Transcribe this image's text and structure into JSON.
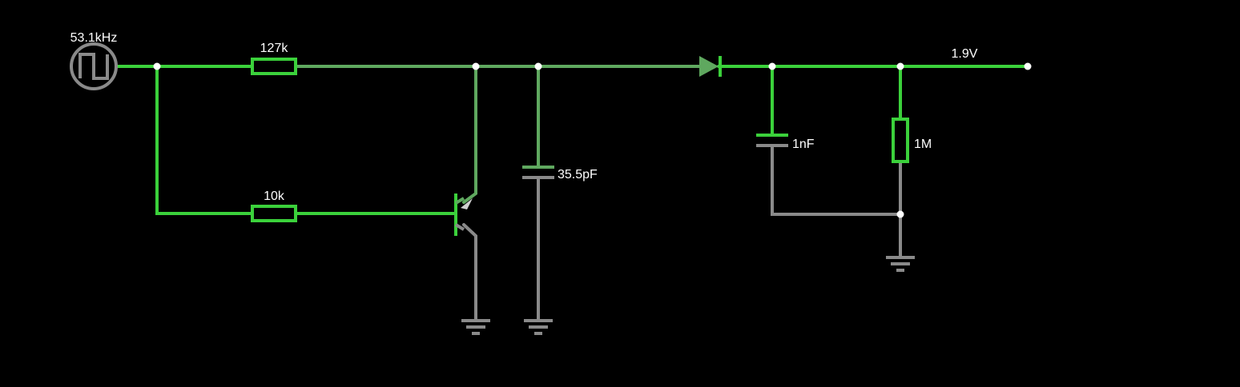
{
  "colors": {
    "background": "#000000",
    "wire_high": "#3bd13b",
    "wire_mid": "#5fa85f",
    "wire_ground": "#8a8a8a",
    "node": "#ffffff",
    "label": "#ffffff"
  },
  "components": {
    "source": {
      "icon": "square-wave-source-icon",
      "label": "53.1kHz"
    },
    "r1": {
      "icon": "resistor-icon",
      "label": "127k"
    },
    "r2": {
      "icon": "resistor-icon",
      "label": "10k"
    },
    "c1": {
      "icon": "capacitor-icon",
      "label": "35.5pF"
    },
    "c2": {
      "icon": "capacitor-icon",
      "label": "1nF"
    },
    "r3": {
      "icon": "resistor-icon",
      "label": "1M"
    },
    "q1": {
      "icon": "pnp-transistor-icon"
    },
    "d1": {
      "icon": "diode-icon"
    },
    "output": {
      "label": "1.9V"
    }
  }
}
